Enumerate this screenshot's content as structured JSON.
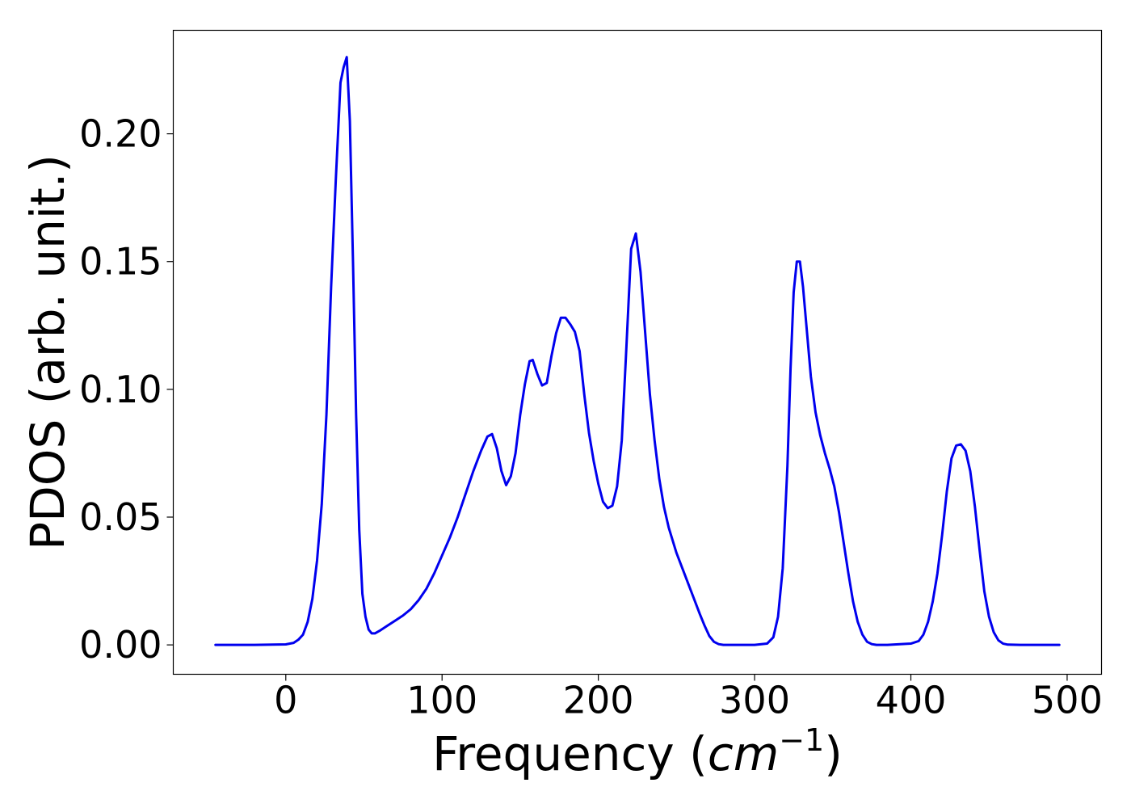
{
  "chart_data": {
    "type": "line",
    "title": "",
    "xlabel_prefix": "Frequency (",
    "xlabel_math_base": "cm",
    "xlabel_math_exp": "−1",
    "xlabel_suffix": ")",
    "ylabel": "PDOS (arb. unit.)",
    "xlim": [
      -72,
      522
    ],
    "ylim": [
      -0.0115,
      0.2405
    ],
    "x_ticks": [
      0,
      100,
      200,
      300,
      400,
      500
    ],
    "x_tick_labels": [
      "0",
      "100",
      "200",
      "300",
      "400",
      "500"
    ],
    "y_ticks": [
      0.0,
      0.05,
      0.1,
      0.15,
      0.2
    ],
    "y_tick_labels": [
      "0.00",
      "0.05",
      "0.10",
      "0.15",
      "0.20"
    ],
    "grid": false,
    "colors": {
      "line": "#0000ee",
      "axes": "#000000",
      "background": "#ffffff"
    },
    "series": [
      {
        "x": [
          -45,
          -20,
          0,
          5,
          8,
          11,
          14,
          17,
          20,
          23,
          26,
          29,
          32,
          35,
          37,
          39,
          41,
          43,
          45,
          47,
          49,
          51,
          53,
          55,
          57,
          60,
          65,
          70,
          75,
          80,
          85,
          90,
          95,
          100,
          105,
          110,
          115,
          120,
          125,
          129,
          132,
          135,
          138,
          141,
          144,
          147,
          150,
          153,
          156,
          158,
          161,
          164,
          167,
          170,
          173,
          176,
          179,
          182,
          185,
          188,
          191,
          194,
          197,
          200,
          203,
          206,
          209,
          212,
          215,
          218,
          221,
          224,
          227,
          230,
          233,
          236,
          239,
          242,
          245,
          250,
          255,
          260,
          265,
          268,
          271,
          274,
          277,
          280,
          290,
          300,
          308,
          312,
          315,
          318,
          321,
          323,
          325,
          327,
          329,
          331,
          333,
          336,
          339,
          342,
          345,
          348,
          351,
          354,
          357,
          360,
          363,
          366,
          369,
          372,
          375,
          378,
          385,
          400,
          405,
          408,
          411,
          414,
          417,
          420,
          423,
          426,
          429,
          432,
          435,
          438,
          441,
          444,
          447,
          450,
          453,
          456,
          459,
          462,
          470,
          495
        ],
        "y": [
          0.0,
          0.0,
          0.0002,
          0.0008,
          0.002,
          0.004,
          0.009,
          0.018,
          0.033,
          0.055,
          0.09,
          0.14,
          0.182,
          0.22,
          0.226,
          0.23,
          0.205,
          0.15,
          0.09,
          0.045,
          0.02,
          0.011,
          0.006,
          0.0045,
          0.0045,
          0.0055,
          0.0075,
          0.0095,
          0.0115,
          0.014,
          0.0175,
          0.022,
          0.028,
          0.035,
          0.042,
          0.05,
          0.059,
          0.068,
          0.076,
          0.0815,
          0.0825,
          0.077,
          0.068,
          0.0625,
          0.066,
          0.075,
          0.09,
          0.102,
          0.111,
          0.1115,
          0.106,
          0.1015,
          0.1025,
          0.113,
          0.122,
          0.128,
          0.128,
          0.1255,
          0.1225,
          0.115,
          0.098,
          0.083,
          0.072,
          0.063,
          0.056,
          0.0535,
          0.0545,
          0.062,
          0.08,
          0.117,
          0.155,
          0.161,
          0.146,
          0.122,
          0.098,
          0.08,
          0.065,
          0.054,
          0.046,
          0.036,
          0.028,
          0.02,
          0.012,
          0.0075,
          0.0035,
          0.0012,
          0.0003,
          0.0,
          0.0,
          0.0,
          0.0005,
          0.003,
          0.011,
          0.03,
          0.07,
          0.108,
          0.138,
          0.15,
          0.15,
          0.14,
          0.126,
          0.105,
          0.091,
          0.082,
          0.075,
          0.069,
          0.062,
          0.052,
          0.04,
          0.028,
          0.017,
          0.009,
          0.004,
          0.0012,
          0.0003,
          0.0,
          0.0,
          0.0005,
          0.0015,
          0.004,
          0.009,
          0.017,
          0.028,
          0.043,
          0.06,
          0.073,
          0.078,
          0.0785,
          0.076,
          0.068,
          0.054,
          0.037,
          0.021,
          0.011,
          0.005,
          0.0018,
          0.0005,
          0.0001,
          0.0,
          0.0
        ]
      }
    ]
  }
}
